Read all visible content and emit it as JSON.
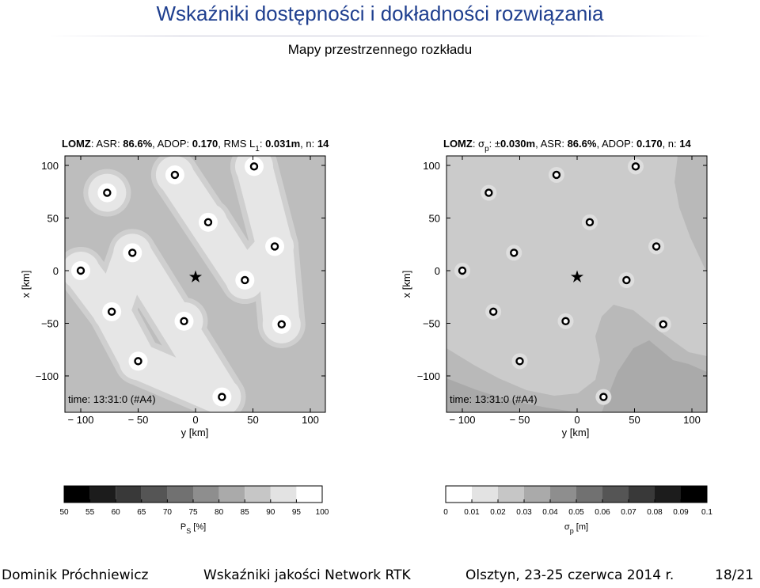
{
  "slide": {
    "title": "Wskaźniki dostępności i dokładności rozwiązania",
    "subtitle": "Mapy przestrzennego rozkładu"
  },
  "footer": {
    "author": "Dominik Próchniewicz",
    "talk": "Wskaźniki jakości Network RTK",
    "place_date": "Olsztyn, 23-25 czerwca 2014 r.",
    "page": "18/21"
  },
  "chart_data": [
    {
      "type": "heatmap",
      "title_parts": [
        "LOMZ",
        ": ASR: ",
        "86.6%",
        ", ADOP: ",
        "0.170",
        ", RMS L",
        "1",
        ": ",
        "0.031m",
        ", n: ",
        "14"
      ],
      "xlabel": "y [km]",
      "ylabel": "x [km]",
      "xlim": [
        -100,
        100
      ],
      "ylim": [
        -100,
        100
      ],
      "xticks": [
        -100,
        -50,
        0,
        50,
        100
      ],
      "yticks": [
        -100,
        -50,
        0,
        50,
        100
      ],
      "annotation": "time: 13:31:0 (#A4)",
      "levels_gray": [
        "#bdbdbd",
        "#cfcfcf",
        "#e6e6e6",
        "#ffffff"
      ],
      "colorbar": {
        "ticks": [
          "50",
          "55",
          "60",
          "65",
          "70",
          "75",
          "80",
          "85",
          "90",
          "95",
          "100"
        ],
        "label_main": "P",
        "label_sub": "S",
        "label_unit": " [%]",
        "direction": "dark-to-light"
      }
    },
    {
      "type": "heatmap",
      "title_parts": [
        "LOMZ",
        ": σ",
        "p",
        ": ±",
        "0.030m",
        ", ASR: ",
        "86.6%",
        ", ADOP: ",
        "0.170",
        ", n: ",
        "14"
      ],
      "xlabel": "y [km]",
      "ylabel": "x [km]",
      "xlim": [
        -100,
        100
      ],
      "ylim": [
        -100,
        100
      ],
      "xticks": [
        -100,
        -50,
        0,
        50,
        100
      ],
      "yticks": [
        -100,
        -50,
        0,
        50,
        100
      ],
      "annotation": "time: 13:31:0 (#A4)",
      "colorbar": {
        "ticks": [
          "0",
          "0.01",
          "0.02",
          "0.03",
          "0.04",
          "0.05",
          "0.06",
          "0.07",
          "0.08",
          "0.09",
          "0.1"
        ],
        "label_main": "σ",
        "label_sub": "p",
        "label_unit": " [m]",
        "direction": "light-to-dark"
      }
    }
  ],
  "stations": [
    {
      "y": -100,
      "x": 0
    },
    {
      "y": -77,
      "x": 74
    },
    {
      "y": -73,
      "x": -39
    },
    {
      "y": -55,
      "x": 17
    },
    {
      "y": -50,
      "x": -86
    },
    {
      "y": -18,
      "x": 91
    },
    {
      "y": -10,
      "x": -48
    },
    {
      "y": 11,
      "x": 46
    },
    {
      "y": 23,
      "x": -120
    },
    {
      "y": 43,
      "x": -9
    },
    {
      "y": 51,
      "x": 99
    },
    {
      "y": 69,
      "x": 23
    },
    {
      "y": 75,
      "x": -51
    }
  ],
  "reference_station": {
    "y": 0,
    "x": -6
  }
}
